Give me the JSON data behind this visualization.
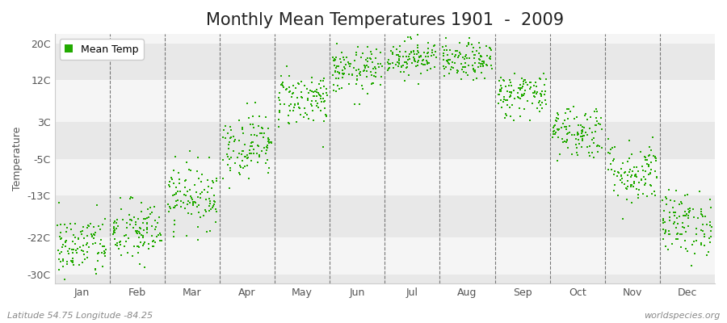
{
  "title": "Monthly Mean Temperatures 1901  -  2009",
  "ylabel": "Temperature",
  "footer_left": "Latitude 54.75 Longitude -84.25",
  "footer_right": "worldspecies.org",
  "legend_label": "Mean Temp",
  "dot_color": "#22aa00",
  "bg_color": "#ffffff",
  "stripe_light": "#f5f5f5",
  "stripe_dark": "#e8e8e8",
  "ytick_labels": [
    "20C",
    "12C",
    "3C",
    "-5C",
    "-13C",
    "-22C",
    "-30C"
  ],
  "ytick_values": [
    20,
    12,
    3,
    -5,
    -13,
    -22,
    -30
  ],
  "ylim": [
    -32,
    22
  ],
  "xlim": [
    0,
    12
  ],
  "month_names": [
    "Jan",
    "Feb",
    "Mar",
    "Apr",
    "May",
    "Jun",
    "Jul",
    "Aug",
    "Sep",
    "Oct",
    "Nov",
    "Dec"
  ],
  "monthly_mean_temps": [
    -24,
    -21,
    -13,
    -2,
    8,
    14,
    17,
    16,
    9,
    1,
    -8,
    -19
  ],
  "monthly_std": [
    3.5,
    3.5,
    3.5,
    3.5,
    3,
    2.5,
    2,
    2,
    2.5,
    3,
    3.5,
    3.5
  ],
  "n_years": 109,
  "dot_size": 3,
  "title_fontsize": 15,
  "axis_fontsize": 9,
  "tick_fontsize": 9,
  "footer_fontsize": 8
}
